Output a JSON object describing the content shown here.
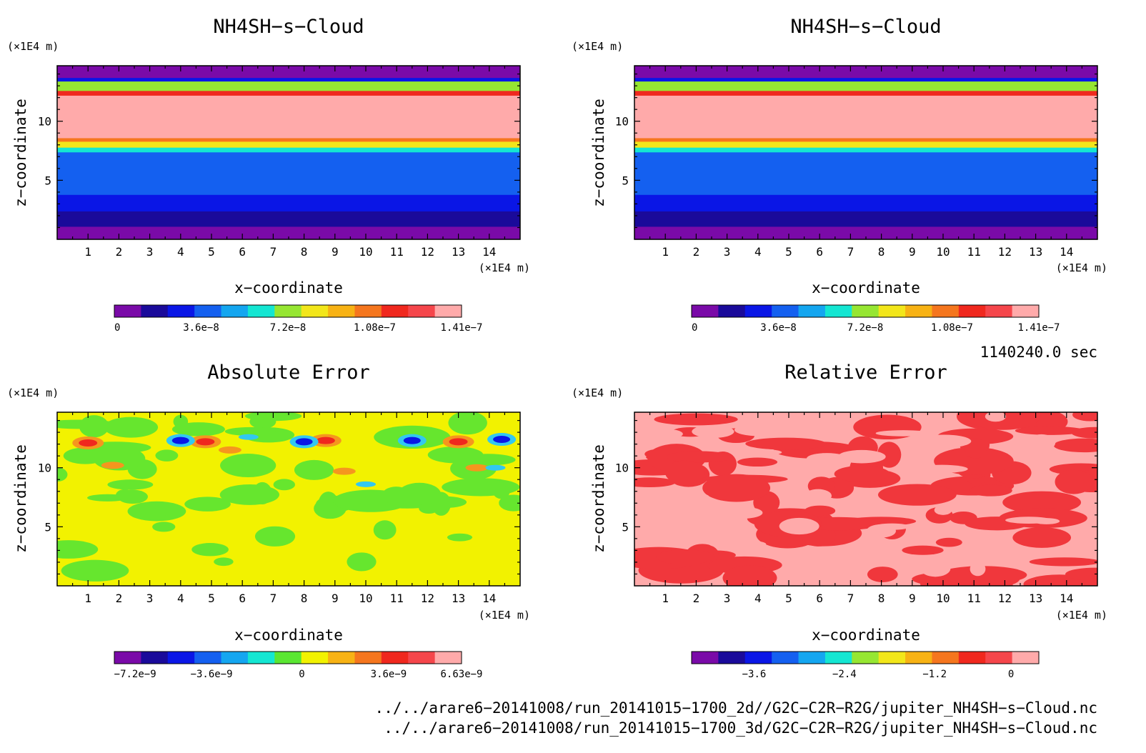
{
  "panels": [
    {
      "title": "NH4SH−s−Cloud",
      "x_label": "x−coordinate",
      "y_label": "z−coordinate",
      "x_unit": "(×1E4 m)",
      "y_unit": "(×1E4 m)",
      "x_ticks": [
        "1",
        "2",
        "3",
        "4",
        "5",
        "6",
        "7",
        "8",
        "9",
        "10",
        "11",
        "12",
        "13",
        "14"
      ],
      "y_ticks": [
        "5",
        "10"
      ],
      "colorbar_labels": [
        "0",
        "3.6e−8",
        "7.2e−8",
        "1.08e−7",
        "1.41e−7"
      ]
    },
    {
      "title": "NH4SH−s−Cloud",
      "x_label": "x−coordinate",
      "y_label": "z−coordinate",
      "x_unit": "(×1E4 m)",
      "y_unit": "(×1E4 m)",
      "x_ticks": [
        "1",
        "2",
        "3",
        "4",
        "5",
        "6",
        "7",
        "8",
        "9",
        "10",
        "11",
        "12",
        "13",
        "14"
      ],
      "y_ticks": [
        "5",
        "10"
      ],
      "colorbar_labels": [
        "0",
        "3.6e−8",
        "7.2e−8",
        "1.08e−7",
        "1.41e−7"
      ]
    },
    {
      "title": "Absolute Error",
      "x_label": "x−coordinate",
      "y_label": "z−coordinate",
      "x_unit": "(×1E4 m)",
      "y_unit": "(×1E4 m)",
      "x_ticks": [
        "1",
        "2",
        "3",
        "4",
        "5",
        "6",
        "7",
        "8",
        "9",
        "10",
        "11",
        "12",
        "13",
        "14"
      ],
      "y_ticks": [
        "5",
        "10"
      ],
      "colorbar_labels": [
        "−7.2e−9",
        "−3.6e−9",
        "0",
        "3.6e−9",
        "6.63e−9"
      ]
    },
    {
      "title": "Relative Error",
      "x_label": "x−coordinate",
      "y_label": "z−coordinate",
      "x_unit": "(×1E4 m)",
      "y_unit": "(×1E4 m)",
      "x_ticks": [
        "1",
        "2",
        "3",
        "4",
        "5",
        "6",
        "7",
        "8",
        "9",
        "10",
        "11",
        "12",
        "13",
        "14"
      ],
      "y_ticks": [
        "5",
        "10"
      ],
      "colorbar_labels": [
        "−3.6",
        "−2.4",
        "−1.2",
        "0"
      ]
    }
  ],
  "time_label": "1140240.0 sec",
  "footer_lines": [
    "../../arare6−20141008/run_20141015−1700_2d//G2C−C2R−R2G/jupiter_NH4SH−s−Cloud.nc",
    "../../arare6−20141008/run_20141015−1700_3d/G2C−C2R−R2G/jupiter_NH4SH−s−Cloud.nc"
  ],
  "colors": {
    "rainbow": [
      "#7a0aa8",
      "#1a0a9a",
      "#0a16e6",
      "#1460f0",
      "#14a6f0",
      "#14e6d2",
      "#96e632",
      "#f2e61a",
      "#f7b214",
      "#f5761e",
      "#f0281e",
      "#f5464b",
      "#ffaaaa"
    ],
    "abs_bg": "#f2f200",
    "abs_green": "#66e62e",
    "abs_orange": "#f5961e",
    "abs_red": "#f0281e",
    "abs_blue": "#0a16e6",
    "abs_cyan": "#32c8f0",
    "rel_light": "#ffaaaa",
    "rel_red": "#f0373c"
  },
  "chart_data": [
    {
      "type": "heatmap",
      "title": "NH4SH−s−Cloud",
      "xlabel": "x−coordinate",
      "ylabel": "z−coordinate",
      "x_unit": "(×1E4 m)",
      "z_unit": "(×1E4 m)",
      "xlim": [
        0,
        15
      ],
      "ylim": [
        0,
        14.7
      ],
      "colorbar": [
        0,
        3.6e-08,
        7.2e-08,
        1.08e-07,
        1.41e-07
      ],
      "profile_bands": [
        {
          "z": [
            0,
            1.1
          ],
          "color_index": 0
        },
        {
          "z": [
            1.1,
            2.4
          ],
          "color_index": 1
        },
        {
          "z": [
            2.4,
            3.8
          ],
          "color_index": 2
        },
        {
          "z": [
            3.8,
            7.4
          ],
          "color_index": 3
        },
        {
          "z": [
            7.4,
            7.8
          ],
          "color_index": 5
        },
        {
          "z": [
            7.8,
            8.3
          ],
          "color_index": 7
        },
        {
          "z": [
            8.3,
            8.6
          ],
          "color_index": 9
        },
        {
          "z": [
            8.6,
            12.2
          ],
          "color_index": 12
        },
        {
          "z": [
            12.2,
            12.6
          ],
          "color_index": 10
        },
        {
          "z": [
            12.6,
            13.4
          ],
          "color_index": 6
        },
        {
          "z": [
            13.4,
            13.7
          ],
          "color_index": 2
        },
        {
          "z": [
            13.7,
            14.7
          ],
          "color_index": 0
        }
      ]
    },
    {
      "type": "heatmap",
      "title": "NH4SH−s−Cloud",
      "xlabel": "x−coordinate",
      "ylabel": "z−coordinate",
      "x_unit": "(×1E4 m)",
      "z_unit": "(×1E4 m)",
      "xlim": [
        0,
        15
      ],
      "ylim": [
        0,
        14.7
      ],
      "colorbar": [
        0,
        3.6e-08,
        7.2e-08,
        1.08e-07,
        1.41e-07
      ],
      "profile_bands": [
        {
          "z": [
            0,
            1.1
          ],
          "color_index": 0
        },
        {
          "z": [
            1.1,
            2.4
          ],
          "color_index": 1
        },
        {
          "z": [
            2.4,
            3.8
          ],
          "color_index": 2
        },
        {
          "z": [
            3.8,
            7.4
          ],
          "color_index": 3
        },
        {
          "z": [
            7.4,
            7.8
          ],
          "color_index": 5
        },
        {
          "z": [
            7.8,
            8.3
          ],
          "color_index": 7
        },
        {
          "z": [
            8.3,
            8.6
          ],
          "color_index": 9
        },
        {
          "z": [
            8.6,
            12.2
          ],
          "color_index": 12
        },
        {
          "z": [
            12.2,
            12.6
          ],
          "color_index": 10
        },
        {
          "z": [
            12.6,
            13.4
          ],
          "color_index": 6
        },
        {
          "z": [
            13.4,
            13.7
          ],
          "color_index": 2
        },
        {
          "z": [
            13.7,
            14.7
          ],
          "color_index": 0
        }
      ]
    },
    {
      "type": "heatmap",
      "title": "Absolute Error",
      "xlabel": "x−coordinate",
      "ylabel": "z−coordinate",
      "x_unit": "(×1E4 m)",
      "z_unit": "(×1E4 m)",
      "xlim": [
        0,
        15
      ],
      "ylim": [
        0,
        14.7
      ],
      "colorbar": [
        -7.2e-09,
        -3.6e-09,
        0,
        3.6e-09,
        6.63e-09
      ],
      "extremes": {
        "min_near": [
          [
            4.0,
            12.3
          ],
          [
            8.0,
            12.2
          ],
          [
            11.5,
            12.3
          ],
          [
            14.4,
            12.4
          ]
        ],
        "max_near": [
          [
            1.0,
            12.1
          ],
          [
            4.8,
            12.2
          ],
          [
            8.7,
            12.3
          ],
          [
            13.0,
            12.2
          ]
        ]
      }
    },
    {
      "type": "heatmap",
      "title": "Relative Error",
      "xlabel": "x−coordinate",
      "ylabel": "z−coordinate",
      "x_unit": "(×1E4 m)",
      "z_unit": "(×1E4 m)",
      "xlim": [
        0,
        15
      ],
      "ylim": [
        0,
        14.7
      ],
      "colorbar": [
        -3.6,
        -2.4,
        -1.2,
        0
      ],
      "levels_present": [
        -0.3,
        0
      ]
    }
  ]
}
